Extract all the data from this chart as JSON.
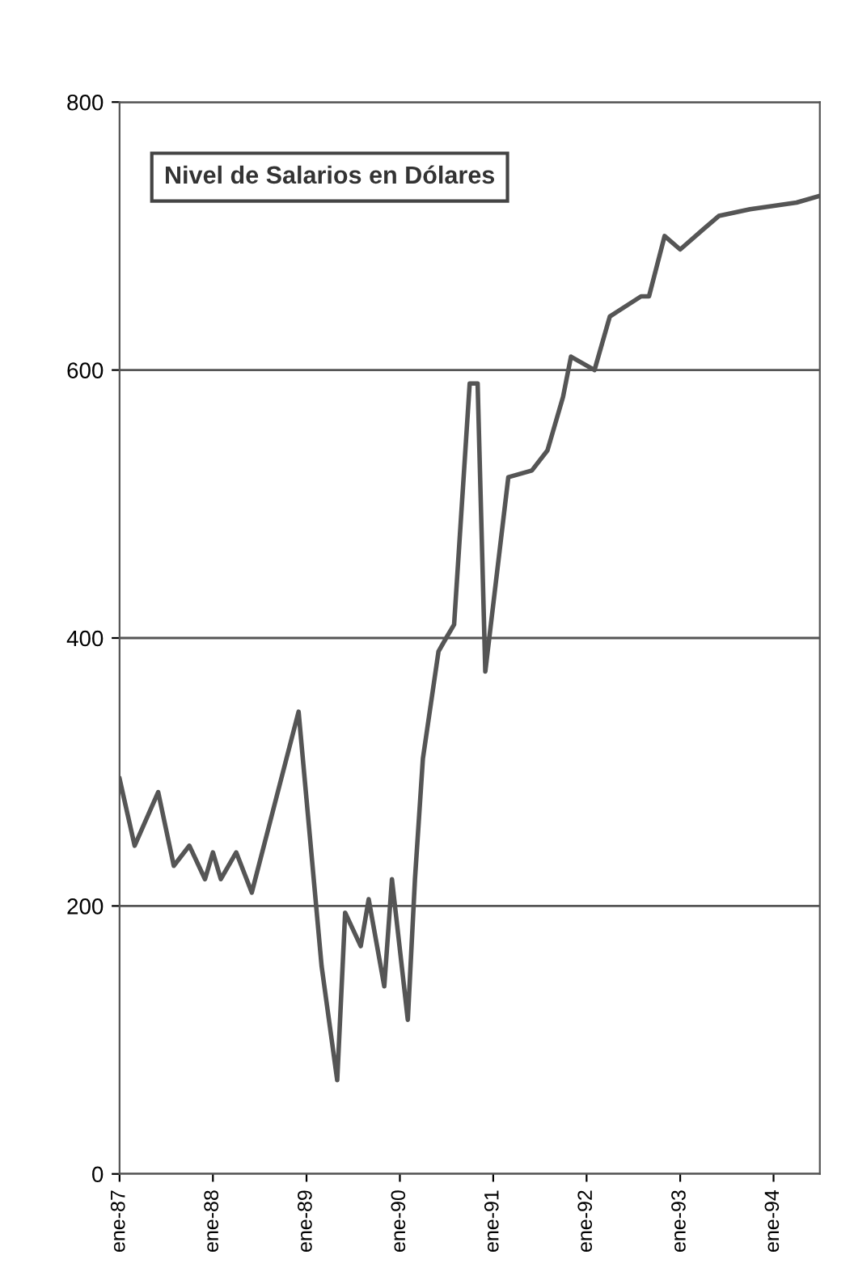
{
  "chart_data": {
    "type": "line",
    "title": "Nivel de Salarios en Dólares",
    "x": [
      "1987-01",
      "1987-03",
      "1987-06",
      "1987-08",
      "1987-10",
      "1987-12",
      "1988-01",
      "1988-02",
      "1988-04",
      "1988-06",
      "1988-12",
      "1989-03",
      "1989-05",
      "1989-06",
      "1989-08",
      "1989-09",
      "1989-11",
      "1989-12",
      "1990-02",
      "1990-03",
      "1990-04",
      "1990-06",
      "1990-07",
      "1990-08",
      "1990-10",
      "1990-11",
      "1990-12",
      "1991-03",
      "1991-06",
      "1991-08",
      "1991-10",
      "1991-11",
      "1992-02",
      "1992-04",
      "1992-08",
      "1992-09",
      "1992-11",
      "1993-01",
      "1993-04",
      "1993-06",
      "1993-10",
      "1994-04",
      "1994-07"
    ],
    "series": [
      {
        "color": "#555555",
        "values": [
          295,
          245,
          285,
          230,
          245,
          220,
          240,
          220,
          240,
          210,
          345,
          155,
          70,
          195,
          170,
          205,
          140,
          220,
          115,
          220,
          310,
          390,
          400,
          410,
          590,
          590,
          375,
          520,
          525,
          540,
          580,
          610,
          600,
          640,
          655,
          655,
          700,
          690,
          705,
          715,
          720,
          725,
          730
        ]
      }
    ],
    "xlim": [
      "1987-01",
      "1994-07"
    ],
    "xticks": [
      {
        "value": "1987-01",
        "label": "ene-87"
      },
      {
        "value": "1988-01",
        "label": "ene-88"
      },
      {
        "value": "1989-01",
        "label": "ene-89"
      },
      {
        "value": "1990-01",
        "label": "ene-90"
      },
      {
        "value": "1991-01",
        "label": "ene-91"
      },
      {
        "value": "1992-01",
        "label": "ene-92"
      },
      {
        "value": "1993-01",
        "label": "ene-93"
      },
      {
        "value": "1994-01",
        "label": "ene-94"
      }
    ],
    "ylim": [
      0,
      800
    ],
    "yticks": [
      0,
      200,
      400,
      600,
      800
    ],
    "grid": "y",
    "marker": "none",
    "line_style": "solid",
    "legend": false
  }
}
